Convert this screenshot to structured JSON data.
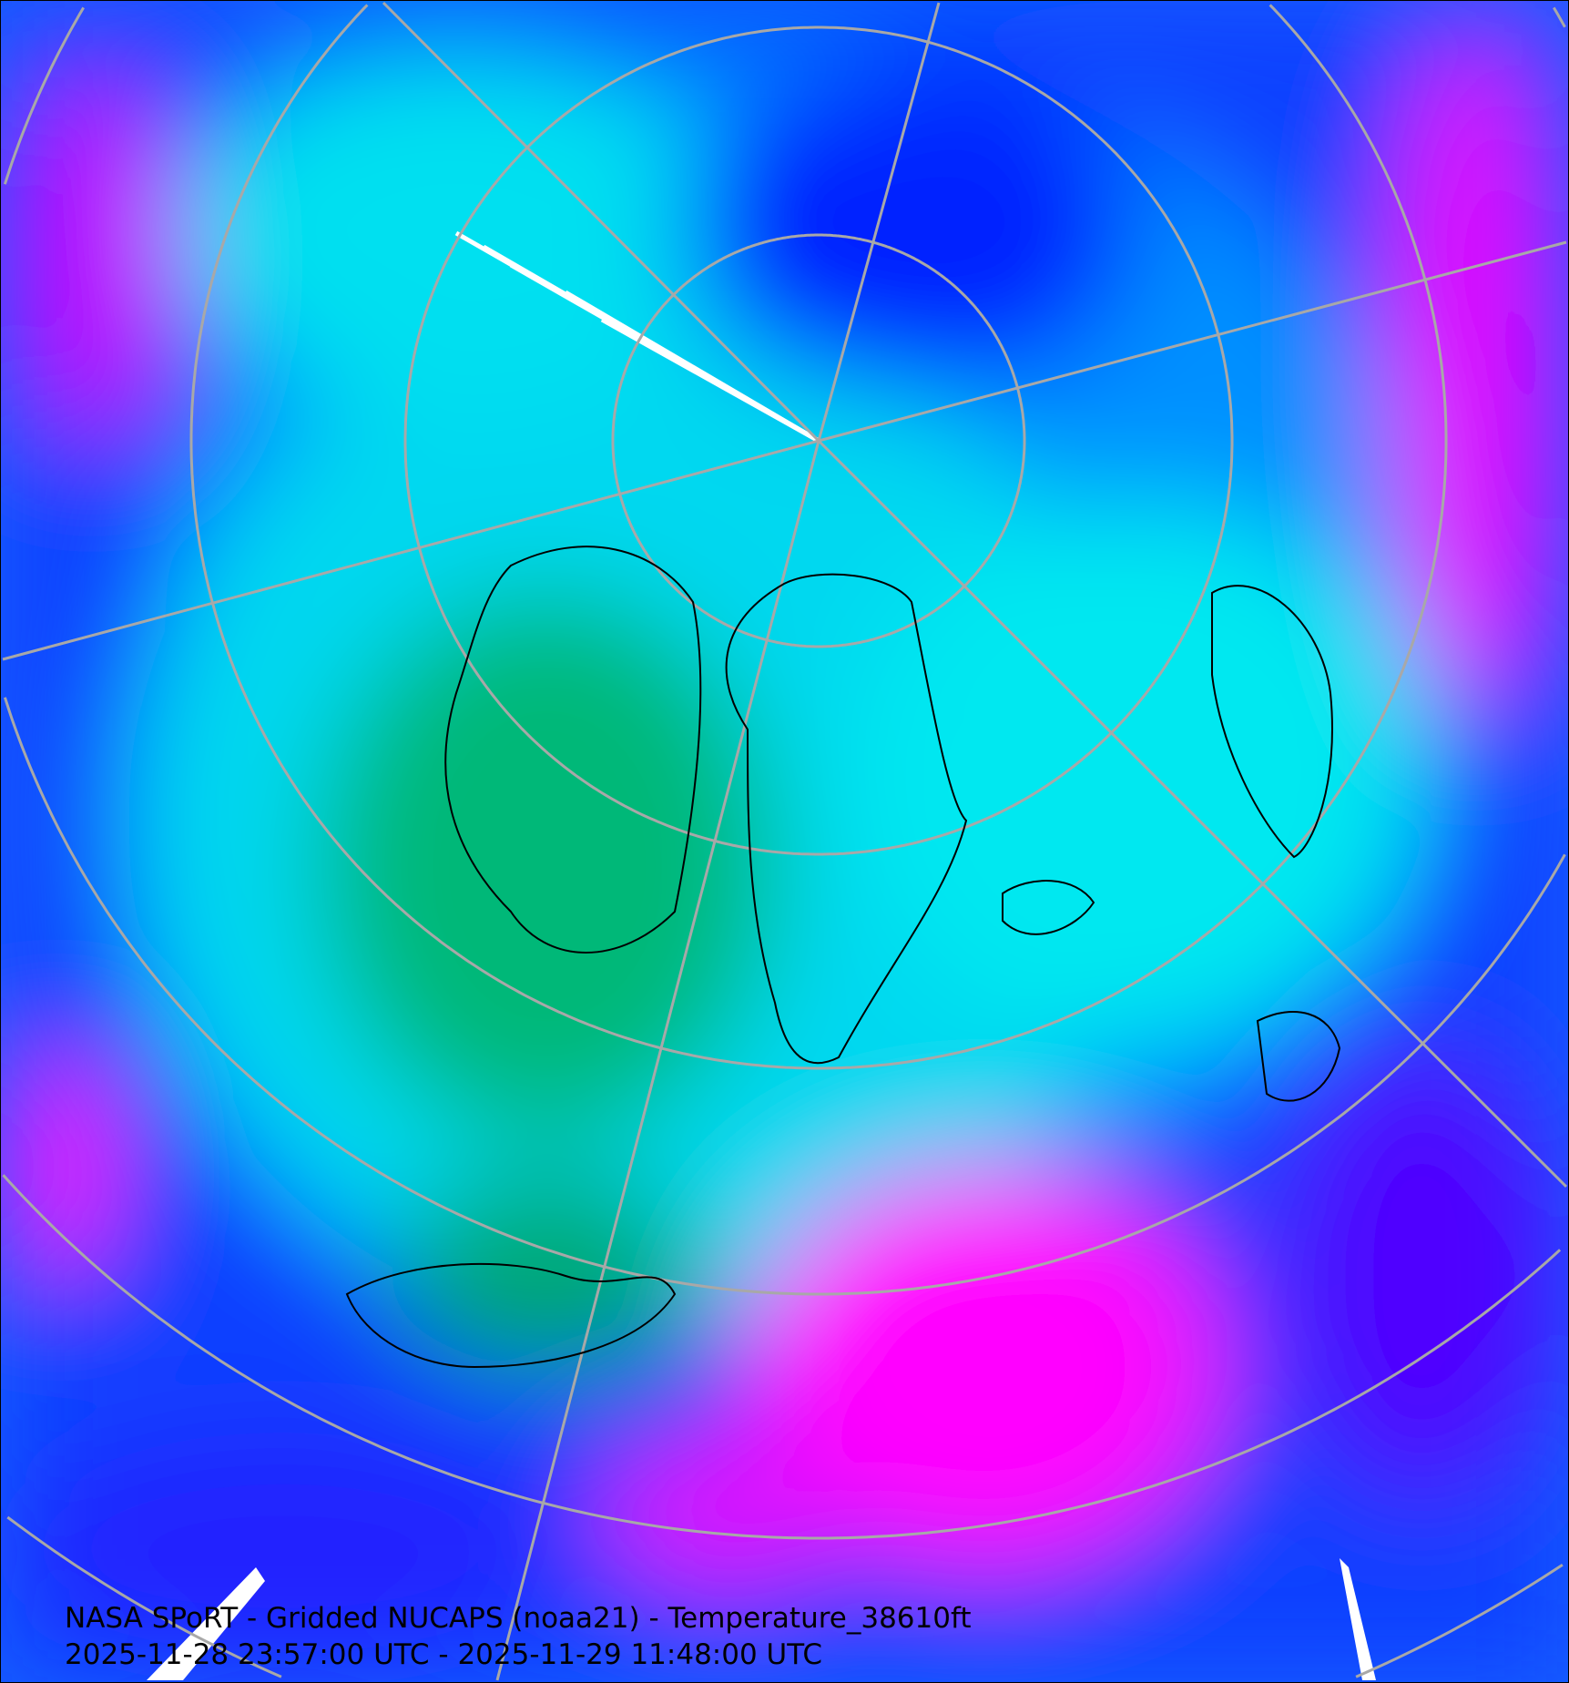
{
  "caption": {
    "title": "NASA SPoRT - Gridded NUCAPS (noaa21) - Temperature_38610ft",
    "time_range": "2025-11-28 23:57:00 UTC - 2025-11-29 11:48:00 UTC"
  },
  "map": {
    "projection": "north-polar-stereographic",
    "colors": {
      "cold_magenta": "#ff00ff",
      "violet": "#8000ff",
      "blue": "#0020ff",
      "light_blue": "#0090ff",
      "cyan": "#00ffee",
      "green": "#00b070",
      "no_data": "#ffffff",
      "graticule": "#a8a8a8",
      "coastlines": "#000000"
    }
  }
}
